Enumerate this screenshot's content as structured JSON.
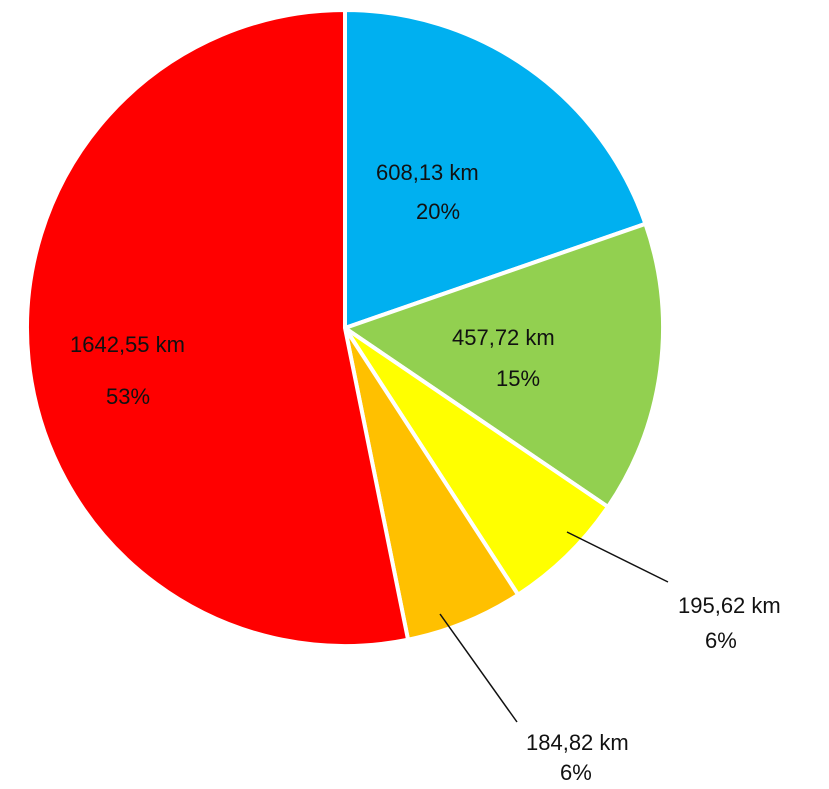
{
  "chart_data": {
    "type": "pie",
    "slices": [
      {
        "value_label": "608,13 km",
        "percent_label": "20%",
        "value": 608.13,
        "percent": 20,
        "color": "#00B0F0"
      },
      {
        "value_label": "457,72 km",
        "percent_label": "15%",
        "value": 457.72,
        "percent": 15,
        "color": "#92D050"
      },
      {
        "value_label": "195,62 km",
        "percent_label": "6%",
        "value": 195.62,
        "percent": 6,
        "color": "#FFFF00"
      },
      {
        "value_label": "184,82 km",
        "percent_label": "6%",
        "value": 184.82,
        "percent": 6,
        "color": "#FFC000"
      },
      {
        "value_label": "1642,55 km",
        "percent_label": "53%",
        "value": 1642.55,
        "percent": 53,
        "color": "#FF0000"
      }
    ]
  }
}
